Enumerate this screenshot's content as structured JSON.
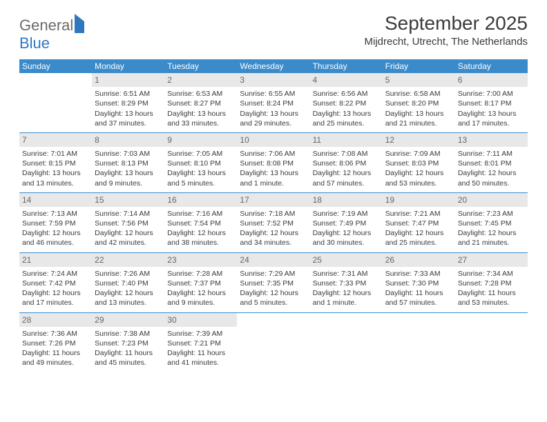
{
  "logo": {
    "word1": "General",
    "word2": "Blue"
  },
  "title": "September 2025",
  "location": "Mijdrecht, Utrecht, The Netherlands",
  "colors": {
    "header_blue": "#3b8bca",
    "text": "#3a3a3a",
    "daynum_bg": "#e8e8e8",
    "daynum_fg": "#666",
    "logo_blue": "#2e78bf",
    "logo_gray": "#6b6b6b"
  },
  "dow": [
    "Sunday",
    "Monday",
    "Tuesday",
    "Wednesday",
    "Thursday",
    "Friday",
    "Saturday"
  ],
  "weeks": [
    [
      {
        "n": "",
        "l1": "",
        "l2": "",
        "l3": ""
      },
      {
        "n": "1",
        "l1": "Sunrise: 6:51 AM",
        "l2": "Sunset: 8:29 PM",
        "l3": "Daylight: 13 hours and 37 minutes."
      },
      {
        "n": "2",
        "l1": "Sunrise: 6:53 AM",
        "l2": "Sunset: 8:27 PM",
        "l3": "Daylight: 13 hours and 33 minutes."
      },
      {
        "n": "3",
        "l1": "Sunrise: 6:55 AM",
        "l2": "Sunset: 8:24 PM",
        "l3": "Daylight: 13 hours and 29 minutes."
      },
      {
        "n": "4",
        "l1": "Sunrise: 6:56 AM",
        "l2": "Sunset: 8:22 PM",
        "l3": "Daylight: 13 hours and 25 minutes."
      },
      {
        "n": "5",
        "l1": "Sunrise: 6:58 AM",
        "l2": "Sunset: 8:20 PM",
        "l3": "Daylight: 13 hours and 21 minutes."
      },
      {
        "n": "6",
        "l1": "Sunrise: 7:00 AM",
        "l2": "Sunset: 8:17 PM",
        "l3": "Daylight: 13 hours and 17 minutes."
      }
    ],
    [
      {
        "n": "7",
        "l1": "Sunrise: 7:01 AM",
        "l2": "Sunset: 8:15 PM",
        "l3": "Daylight: 13 hours and 13 minutes."
      },
      {
        "n": "8",
        "l1": "Sunrise: 7:03 AM",
        "l2": "Sunset: 8:13 PM",
        "l3": "Daylight: 13 hours and 9 minutes."
      },
      {
        "n": "9",
        "l1": "Sunrise: 7:05 AM",
        "l2": "Sunset: 8:10 PM",
        "l3": "Daylight: 13 hours and 5 minutes."
      },
      {
        "n": "10",
        "l1": "Sunrise: 7:06 AM",
        "l2": "Sunset: 8:08 PM",
        "l3": "Daylight: 13 hours and 1 minute."
      },
      {
        "n": "11",
        "l1": "Sunrise: 7:08 AM",
        "l2": "Sunset: 8:06 PM",
        "l3": "Daylight: 12 hours and 57 minutes."
      },
      {
        "n": "12",
        "l1": "Sunrise: 7:09 AM",
        "l2": "Sunset: 8:03 PM",
        "l3": "Daylight: 12 hours and 53 minutes."
      },
      {
        "n": "13",
        "l1": "Sunrise: 7:11 AM",
        "l2": "Sunset: 8:01 PM",
        "l3": "Daylight: 12 hours and 50 minutes."
      }
    ],
    [
      {
        "n": "14",
        "l1": "Sunrise: 7:13 AM",
        "l2": "Sunset: 7:59 PM",
        "l3": "Daylight: 12 hours and 46 minutes."
      },
      {
        "n": "15",
        "l1": "Sunrise: 7:14 AM",
        "l2": "Sunset: 7:56 PM",
        "l3": "Daylight: 12 hours and 42 minutes."
      },
      {
        "n": "16",
        "l1": "Sunrise: 7:16 AM",
        "l2": "Sunset: 7:54 PM",
        "l3": "Daylight: 12 hours and 38 minutes."
      },
      {
        "n": "17",
        "l1": "Sunrise: 7:18 AM",
        "l2": "Sunset: 7:52 PM",
        "l3": "Daylight: 12 hours and 34 minutes."
      },
      {
        "n": "18",
        "l1": "Sunrise: 7:19 AM",
        "l2": "Sunset: 7:49 PM",
        "l3": "Daylight: 12 hours and 30 minutes."
      },
      {
        "n": "19",
        "l1": "Sunrise: 7:21 AM",
        "l2": "Sunset: 7:47 PM",
        "l3": "Daylight: 12 hours and 25 minutes."
      },
      {
        "n": "20",
        "l1": "Sunrise: 7:23 AM",
        "l2": "Sunset: 7:45 PM",
        "l3": "Daylight: 12 hours and 21 minutes."
      }
    ],
    [
      {
        "n": "21",
        "l1": "Sunrise: 7:24 AM",
        "l2": "Sunset: 7:42 PM",
        "l3": "Daylight: 12 hours and 17 minutes."
      },
      {
        "n": "22",
        "l1": "Sunrise: 7:26 AM",
        "l2": "Sunset: 7:40 PM",
        "l3": "Daylight: 12 hours and 13 minutes."
      },
      {
        "n": "23",
        "l1": "Sunrise: 7:28 AM",
        "l2": "Sunset: 7:37 PM",
        "l3": "Daylight: 12 hours and 9 minutes."
      },
      {
        "n": "24",
        "l1": "Sunrise: 7:29 AM",
        "l2": "Sunset: 7:35 PM",
        "l3": "Daylight: 12 hours and 5 minutes."
      },
      {
        "n": "25",
        "l1": "Sunrise: 7:31 AM",
        "l2": "Sunset: 7:33 PM",
        "l3": "Daylight: 12 hours and 1 minute."
      },
      {
        "n": "26",
        "l1": "Sunrise: 7:33 AM",
        "l2": "Sunset: 7:30 PM",
        "l3": "Daylight: 11 hours and 57 minutes."
      },
      {
        "n": "27",
        "l1": "Sunrise: 7:34 AM",
        "l2": "Sunset: 7:28 PM",
        "l3": "Daylight: 11 hours and 53 minutes."
      }
    ],
    [
      {
        "n": "28",
        "l1": "Sunrise: 7:36 AM",
        "l2": "Sunset: 7:26 PM",
        "l3": "Daylight: 11 hours and 49 minutes."
      },
      {
        "n": "29",
        "l1": "Sunrise: 7:38 AM",
        "l2": "Sunset: 7:23 PM",
        "l3": "Daylight: 11 hours and 45 minutes."
      },
      {
        "n": "30",
        "l1": "Sunrise: 7:39 AM",
        "l2": "Sunset: 7:21 PM",
        "l3": "Daylight: 11 hours and 41 minutes."
      },
      {
        "n": "",
        "l1": "",
        "l2": "",
        "l3": ""
      },
      {
        "n": "",
        "l1": "",
        "l2": "",
        "l3": ""
      },
      {
        "n": "",
        "l1": "",
        "l2": "",
        "l3": ""
      },
      {
        "n": "",
        "l1": "",
        "l2": "",
        "l3": ""
      }
    ]
  ]
}
